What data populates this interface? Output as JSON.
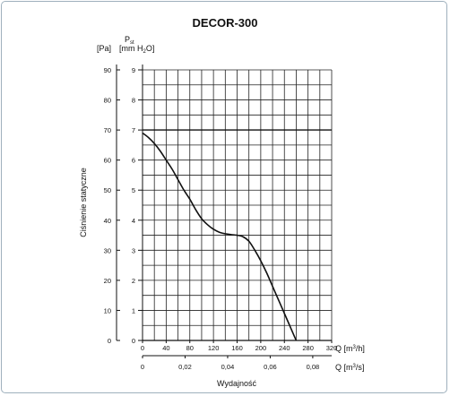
{
  "chart_data": {
    "type": "line",
    "title": "DECOR-300",
    "ylabel": "Ciśnienie statyczne",
    "xlabel": "Wydajność",
    "y_left": {
      "unit_label": "[Pa]",
      "ticks": [
        "0",
        "10",
        "20",
        "30",
        "40",
        "50",
        "60",
        "70",
        "80",
        "90"
      ],
      "range": [
        0,
        90
      ]
    },
    "y_right": {
      "symbol": "P",
      "symbol_sub": "st",
      "unit_label_pre": "[mm H",
      "unit_label_sub": "2",
      "unit_label_post": "O]",
      "ticks": [
        "0",
        "1",
        "2",
        "3",
        "4",
        "5",
        "6",
        "7",
        "8",
        "9"
      ],
      "range": [
        0,
        9
      ]
    },
    "x_primary": {
      "label_pre": "Q [m",
      "label_sup": "3",
      "label_post": "/h]",
      "ticks": [
        "0",
        "40",
        "80",
        "120",
        "160",
        "200",
        "240",
        "280",
        "320"
      ],
      "range": [
        0,
        320
      ]
    },
    "x_secondary": {
      "label_pre": "Q [m",
      "label_sup": "3",
      "label_post": "/s]",
      "ticks": [
        "0",
        "0,02",
        "0,04",
        "0,06",
        "0,08"
      ],
      "values": [
        0,
        0.02,
        0.04,
        0.06,
        0.08
      ]
    },
    "grid": true,
    "reference_line_y": 7,
    "series": [
      {
        "x": [
          0,
          10,
          20,
          30,
          40,
          50,
          60,
          70,
          80,
          90,
          100,
          110,
          120,
          130,
          140,
          150,
          160,
          170,
          180,
          190,
          200,
          210,
          220,
          230,
          240,
          250,
          260,
          270
        ],
        "y": [
          6.9,
          6.75,
          6.55,
          6.3,
          6.0,
          5.7,
          5.35,
          5.0,
          4.7,
          4.35,
          4.05,
          3.85,
          3.7,
          3.6,
          3.55,
          3.52,
          3.5,
          3.45,
          3.3,
          3.0,
          2.65,
          2.25,
          1.8,
          1.35,
          0.9,
          0.45,
          0.0,
          -0.4
        ]
      }
    ]
  }
}
